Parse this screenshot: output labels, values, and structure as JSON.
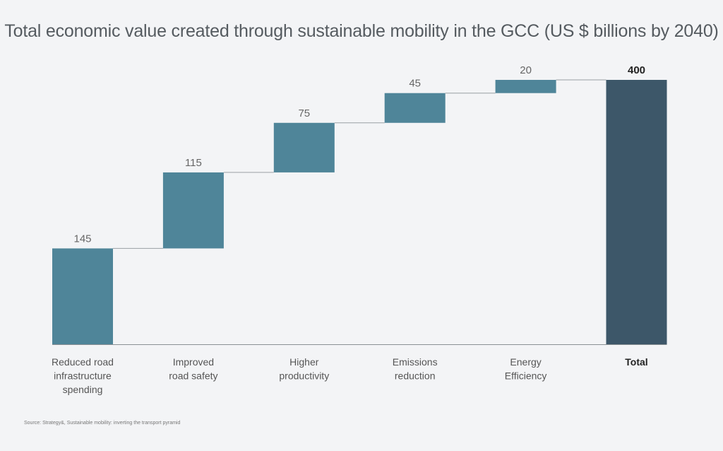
{
  "chart_data": {
    "type": "bar",
    "subtype": "waterfall",
    "title": "Total economic value created through sustainable mobility in the GCC (US $ billions by 2040)",
    "categories": [
      [
        "Reduced road",
        "infrastructure",
        "spending"
      ],
      [
        "Improved",
        "road safety"
      ],
      [
        "Higher",
        "productivity"
      ],
      [
        "Emissions",
        "reduction"
      ],
      [
        "Energy",
        "Efficiency"
      ],
      [
        "Total"
      ]
    ],
    "values": [
      145,
      115,
      75,
      45,
      20,
      400
    ],
    "value_labels": [
      "145",
      "115",
      "75",
      "45",
      "20",
      "400"
    ],
    "is_total": [
      false,
      false,
      false,
      false,
      false,
      true
    ],
    "ylim": [
      0,
      400
    ],
    "xlabel": "",
    "ylabel": "",
    "grid": false,
    "colors": {
      "increment": "#4f8599",
      "total": "#3d5769",
      "connector": "#9aa0a4"
    }
  },
  "source": "Source: Strategy&, Sustainable mobility: inverting the transport pyramid"
}
